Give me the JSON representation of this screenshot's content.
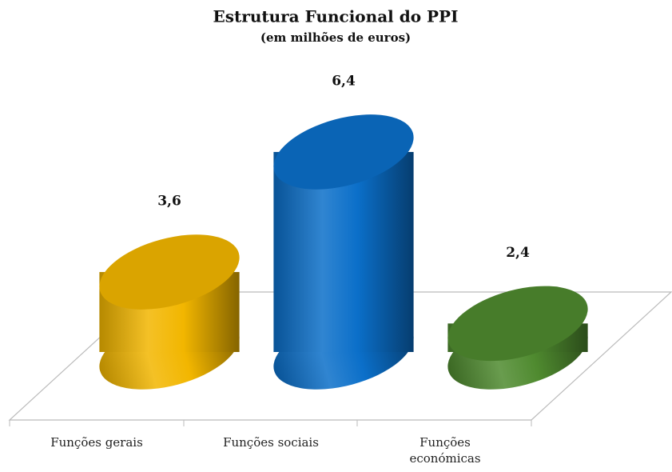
{
  "chart_data": {
    "type": "bar3d-cylinder",
    "title": "Estrutura Funcional do PPI",
    "subtitle": "(em milhões de euros)",
    "categories": [
      "Funções gerais",
      "Funções sociais",
      "Funções económicas"
    ],
    "values": [
      3.6,
      6.4,
      2.4
    ],
    "value_labels": [
      "3,6",
      "6,4",
      "2,4"
    ],
    "colors": [
      "#f2b600",
      "#0b6fc9",
      "#4f8a2f"
    ]
  }
}
